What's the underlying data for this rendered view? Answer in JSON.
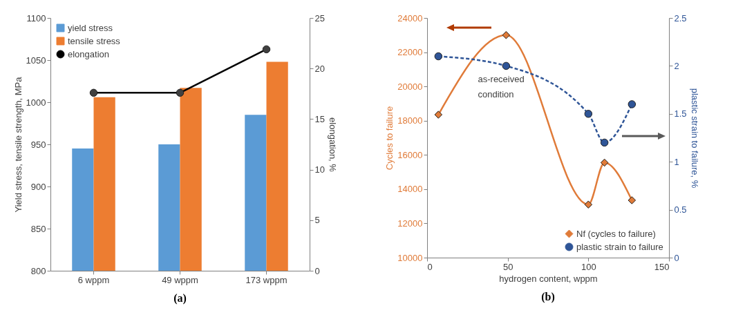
{
  "chart_data": [
    {
      "type": "bar",
      "title": "(a)",
      "ylabel": "Yield stress, tensile strength, MPa",
      "y2label": "elongation, %",
      "categories": [
        "6 wppm",
        "49 wppm",
        "173 wppm"
      ],
      "series": [
        {
          "name": "yield stress",
          "color": "#5b9bd5",
          "values": [
            945,
            950,
            985
          ]
        },
        {
          "name": "tensile stress",
          "color": "#ed7d31",
          "values": [
            1006,
            1017,
            1048
          ]
        },
        {
          "name": "elongation",
          "type": "line",
          "axis": "y2",
          "color": "#000000",
          "marker": "circle",
          "values": [
            17.6,
            17.6,
            21.9
          ]
        }
      ],
      "ylim": [
        800,
        1100
      ],
      "yticks": [
        800,
        850,
        900,
        950,
        1000,
        1050,
        1100
      ],
      "y2lim": [
        0,
        25
      ],
      "y2ticks": [
        0,
        5,
        10,
        15,
        20,
        25
      ],
      "grid": false,
      "legend": "top left"
    },
    {
      "type": "line",
      "title": "(b)",
      "xlabel": "hydrogen content, wppm",
      "ylabel": "Cycles to failure",
      "y2label": "plastic strain to failure, %",
      "x": [
        7,
        49,
        100,
        110,
        127
      ],
      "series": [
        {
          "name": "Nf (cycles to failure)",
          "color": "#e07b39",
          "marker": "diamond",
          "line_style": "solid",
          "values": [
            18350,
            23000,
            13100,
            15550,
            13350
          ]
        },
        {
          "name": "plastic strain to failure",
          "color": "#2f5597",
          "axis": "y2",
          "marker": "circle",
          "line_style": "dashed",
          "values": [
            2.1,
            2.0,
            1.5,
            1.2,
            1.6
          ]
        }
      ],
      "xlim": [
        0,
        150
      ],
      "xticks": [
        0,
        50,
        100,
        150
      ],
      "ylim": [
        10000,
        24000
      ],
      "yticks": [
        10000,
        12000,
        14000,
        16000,
        18000,
        20000,
        22000,
        24000
      ],
      "y2lim": [
        0,
        2.5
      ],
      "y2ticks": [
        0,
        0.5,
        1,
        1.5,
        2,
        2.5
      ],
      "grid": false,
      "legend": "bottom right",
      "annotations": [
        "as-received\ncondition"
      ]
    }
  ]
}
